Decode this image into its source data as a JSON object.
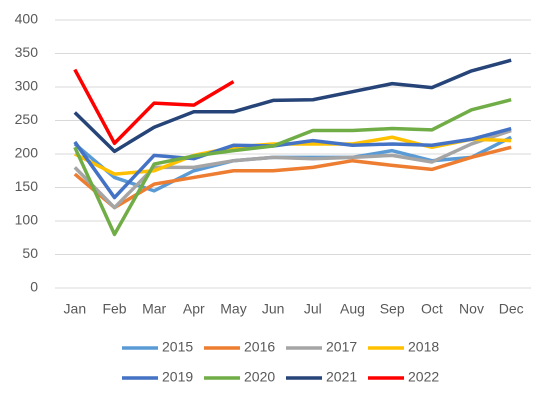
{
  "chart_data": {
    "type": "line",
    "categories": [
      "Jan",
      "Feb",
      "Mar",
      "Apr",
      "May",
      "Jun",
      "Jul",
      "Aug",
      "Sep",
      "Oct",
      "Nov",
      "Dec"
    ],
    "ylim": [
      0,
      400
    ],
    "yticks": [
      0,
      50,
      100,
      150,
      200,
      250,
      300,
      350,
      400
    ],
    "grid": true,
    "legend": "bottom",
    "series": [
      {
        "name": "2015",
        "color": "#5b9bd5",
        "values": [
          215,
          165,
          145,
          175,
          190,
          195,
          195,
          195,
          205,
          190,
          195,
          225
        ]
      },
      {
        "name": "2016",
        "color": "#ed7d31",
        "values": [
          170,
          120,
          155,
          165,
          175,
          175,
          180,
          190,
          183,
          177,
          195,
          210
        ]
      },
      {
        "name": "2017",
        "color": "#a5a5a5",
        "values": [
          180,
          120,
          180,
          180,
          190,
          195,
          193,
          195,
          198,
          188,
          215,
          235
        ]
      },
      {
        "name": "2018",
        "color": "#ffc000",
        "values": [
          200,
          170,
          175,
          198,
          210,
          215,
          215,
          215,
          225,
          210,
          222,
          220
        ]
      },
      {
        "name": "2019",
        "color": "#4472c4",
        "values": [
          218,
          135,
          198,
          193,
          213,
          212,
          220,
          213,
          215,
          213,
          222,
          238
        ]
      },
      {
        "name": "2020",
        "color": "#70ad47",
        "values": [
          210,
          80,
          185,
          197,
          205,
          212,
          235,
          235,
          238,
          236,
          266,
          281
        ]
      },
      {
        "name": "2021",
        "color": "#264478",
        "values": [
          262,
          204,
          240,
          263,
          263,
          280,
          281,
          293,
          305,
          299,
          324,
          340
        ]
      },
      {
        "name": "2022",
        "color": "#ff0000",
        "values": [
          326,
          216,
          276,
          273,
          308,
          null,
          null,
          null,
          null,
          null,
          null,
          null
        ]
      }
    ]
  }
}
